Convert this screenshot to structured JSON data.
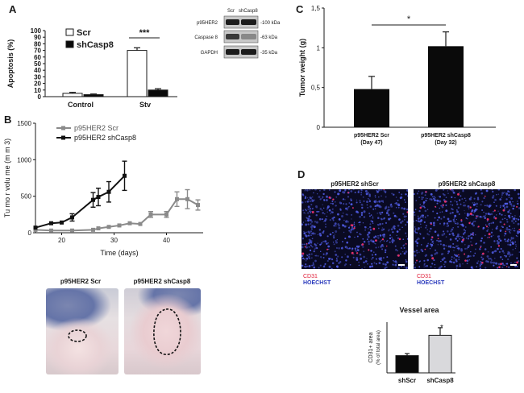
{
  "colors": {
    "ink": "#1a1a1a",
    "scr_line": "#8a8a8a",
    "shcasp8_line": "#111111",
    "bar_black": "#0a0a0a",
    "bar_light": "#d9d9dc",
    "cd31": "#e0203a",
    "hoechst": "#2b3bbd"
  },
  "panels": {
    "a": "A",
    "b": "B",
    "c": "C",
    "d": "D"
  },
  "western_blot": {
    "lanes": [
      "Scr",
      "shCasp8"
    ],
    "rows": [
      {
        "name": "p95HER2",
        "marker": "-100 kDa"
      },
      {
        "name": "Caspase 8",
        "marker": "-63 kDa"
      },
      {
        "name": "GAPDH",
        "marker": "-35 kDa"
      }
    ]
  },
  "photos": {
    "left_label": "p95HER2 Scr",
    "right_label": "p95HER2 shCasp8"
  },
  "micrographs": {
    "left_label": "p95HER2 shScr",
    "right_label": "p95HER2 shCasp8",
    "stain1": "CD31",
    "stain2": "HOECHST"
  },
  "chart_data": [
    {
      "id": "A",
      "type": "bar",
      "categories": [
        "Control",
        "Stv"
      ],
      "series": [
        {
          "name": "Scr",
          "values": [
            5,
            70
          ],
          "errors": [
            1.5,
            4
          ]
        },
        {
          "name": "shCasp8",
          "values": [
            3,
            10
          ],
          "errors": [
            1,
            2
          ]
        }
      ],
      "ylabel": "Apoptosis (%)",
      "ylim": [
        0,
        100
      ],
      "yticks": [
        "0",
        "10",
        "20",
        "30",
        "40",
        "50",
        "60",
        "70",
        "80",
        "90",
        "100"
      ],
      "annotation": "***",
      "legend": "top-left"
    },
    {
      "id": "B",
      "type": "line",
      "series": [
        {
          "name": "p95HER2 Scr",
          "x": [
            15,
            18,
            22,
            26,
            27,
            29,
            31,
            33,
            35,
            37,
            40,
            42,
            44,
            46
          ],
          "y": [
            40,
            30,
            30,
            40,
            60,
            80,
            100,
            130,
            120,
            250,
            250,
            460,
            460,
            380
          ],
          "err": [
            0,
            0,
            0,
            0,
            0,
            0,
            0,
            0,
            0,
            40,
            40,
            100,
            130,
            70
          ]
        },
        {
          "name": "p95HER2 shCasp8",
          "x": [
            15,
            18,
            20,
            22,
            26,
            27,
            29,
            32
          ],
          "y": [
            70,
            130,
            140,
            210,
            450,
            490,
            560,
            780
          ],
          "err": [
            0,
            0,
            0,
            50,
            100,
            120,
            140,
            200
          ]
        }
      ],
      "xlabel": "Time (days)",
      "ylabel": "Tu mo r volu me (m m 3)",
      "xlim": [
        15,
        47
      ],
      "ylim": [
        0,
        1500
      ],
      "xticks": [
        "20",
        "30",
        "40"
      ],
      "yticks": [
        "0",
        "500",
        "1000",
        "1500"
      ],
      "legend": "top-left"
    },
    {
      "id": "C",
      "type": "bar",
      "categories": [
        "p95HER2 Scr (Day 47)",
        "p95HER2 shCasp8 (Day 32)"
      ],
      "category_lines": [
        [
          "p95HER2 Scr",
          "(Day 47)"
        ],
        [
          "p95HER2 shCasp8",
          "(Day 32)"
        ]
      ],
      "values": [
        0.48,
        1.02
      ],
      "errors": [
        0.16,
        0.18
      ],
      "ylabel": "Tumor weight (g)",
      "ylim": [
        0,
        1.5
      ],
      "yticks": [
        "0",
        "0,5",
        "1",
        "1,5"
      ],
      "annotation": "*"
    },
    {
      "id": "D",
      "type": "bar",
      "title": "Vessel area",
      "categories": [
        "shScr",
        "shCasp8"
      ],
      "values": [
        1.7,
        3.7
      ],
      "errors": [
        0.2,
        0.75
      ],
      "ylabel": "CD31+ area",
      "ylabel2": "(% of total area)",
      "annotation": "*",
      "ylim": [
        0,
        5
      ]
    }
  ]
}
